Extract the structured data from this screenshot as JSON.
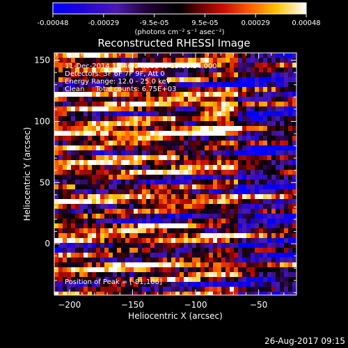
{
  "colorbar": {
    "ticks": [
      "-0.00048",
      "-0.00029",
      "-9.5e-05",
      "9.5e-05",
      "0.00029",
      "0.00048"
    ],
    "units_label": "(photons cm⁻² s⁻¹ asec⁻²)",
    "range": [
      -0.00048,
      0.00048
    ]
  },
  "chart_data": {
    "type": "heatmap",
    "title": "Reconstructed RHESSI Image",
    "xlabel": "Heliocentric X (arcsec)",
    "ylabel": "Heliocentric Y (arcsec)",
    "xlim": [
      -212,
      -20
    ],
    "ylim": [
      -42,
      156
    ],
    "x_ticks": [
      -200,
      -150,
      -100,
      -50
    ],
    "x_tick_labels": [
      "−200",
      "−150",
      "−100",
      "−50"
    ],
    "y_ticks": [
      0,
      50,
      100,
      150
    ],
    "y_tick_labels": [
      "0",
      "50",
      "100",
      "150"
    ],
    "grid": false,
    "colormap": "blue-black-red-yellow-white",
    "peak": [
      -81,
      106
    ],
    "annotations": {
      "time": "11-Dec-2014 15:46:24.000 to 15:58:24.000",
      "detectors": "Detectors: 3F 6F 7F 9F, Att 0",
      "energy": "Energy Range: 12.0 - 25.0 keV",
      "clean": "Clean     Total counts: 6.75E+03",
      "peak": "Position of Peak = [-81,106]"
    }
  },
  "footer": {
    "date": "26-Aug-2017 09:15"
  },
  "colors": {
    "background": "#000000",
    "frame": "#ffffff"
  }
}
